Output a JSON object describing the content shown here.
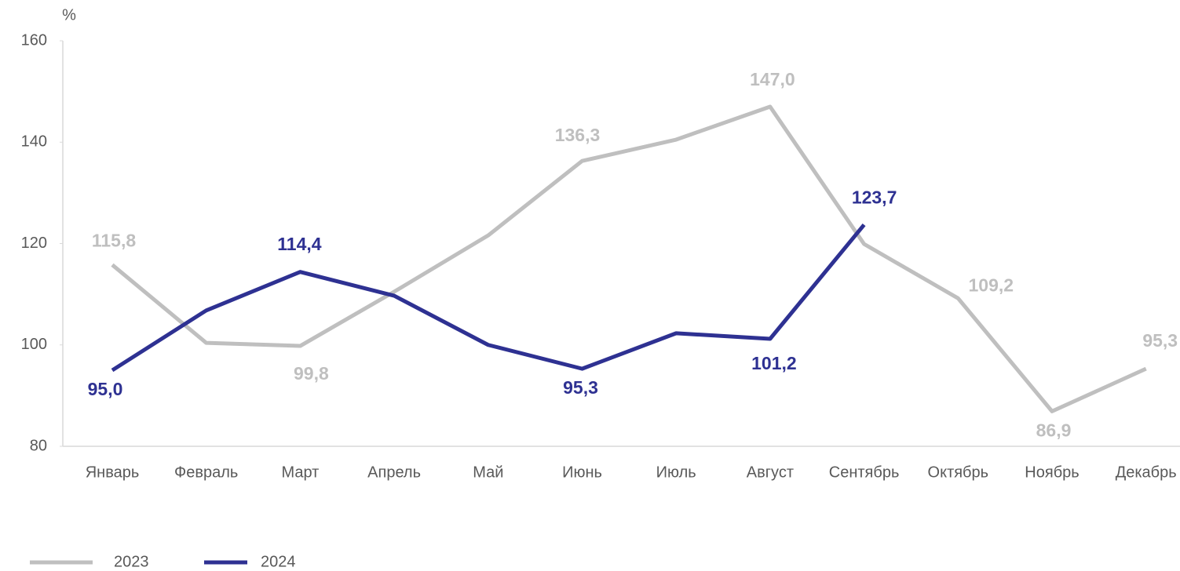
{
  "chart_data": {
    "type": "line",
    "y_label": "%",
    "categories": [
      "Январь",
      "Февраль",
      "Март",
      "Апрель",
      "Май",
      "Июнь",
      "Июль",
      "Август",
      "Сентябрь",
      "Октябрь",
      "Ноябрь",
      "Декабрь"
    ],
    "series": [
      {
        "name": "2023",
        "color": "#bfbfbf",
        "values": [
          115.8,
          100.4,
          99.8,
          110.5,
          121.6,
          136.3,
          140.5,
          147.0,
          119.9,
          109.2,
          86.9,
          95.3
        ],
        "value_labels": [
          "115,8",
          null,
          "99,8",
          null,
          null,
          "136,3",
          null,
          "147,0",
          null,
          "109,2",
          "86,9",
          "95,3"
        ]
      },
      {
        "name": "2024",
        "color": "#2e3192",
        "values": [
          95.0,
          106.8,
          114.4,
          109.7,
          100.0,
          95.3,
          102.3,
          101.2,
          123.7,
          null,
          null,
          null
        ],
        "value_labels": [
          "95,0",
          null,
          "114,4",
          null,
          null,
          "95,3",
          null,
          "101,2",
          "123,7",
          null,
          null,
          null
        ]
      }
    ],
    "ylim": [
      80,
      160
    ],
    "yticks": [
      80,
      100,
      120,
      140,
      160
    ],
    "grid": false,
    "legend": "bottom-left"
  }
}
